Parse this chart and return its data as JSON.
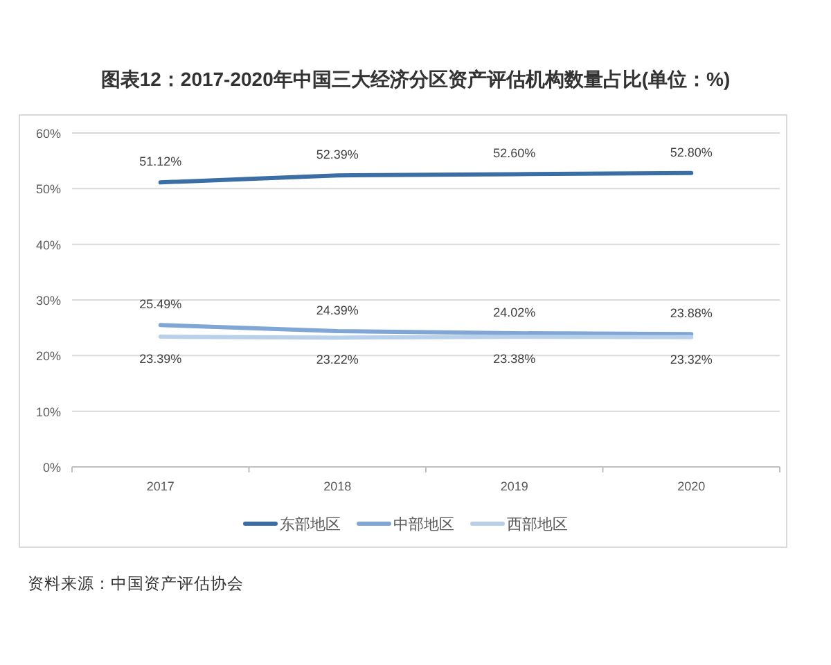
{
  "chart_data": {
    "type": "line",
    "title": "图表12：2017-2020年中国三大经济分区资产评估机构数量占比(单位：%)",
    "categories": [
      "2017",
      "2018",
      "2019",
      "2020"
    ],
    "series": [
      {
        "name": "东部地区",
        "color": "#3b6ea5",
        "values": [
          51.12,
          52.39,
          52.6,
          52.8
        ],
        "value_labels": [
          "51.12%",
          "52.39%",
          "52.60%",
          "52.80%"
        ]
      },
      {
        "name": "中部地区",
        "color": "#7fa6d4",
        "values": [
          25.49,
          24.39,
          24.02,
          23.88
        ],
        "value_labels": [
          "25.49%",
          "24.39%",
          "24.02%",
          "23.88%"
        ]
      },
      {
        "name": "西部地区",
        "color": "#b9d0ea",
        "values": [
          23.39,
          23.22,
          23.38,
          23.32
        ],
        "value_labels": [
          "23.39%",
          "23.22%",
          "23.38%",
          "23.32%"
        ]
      }
    ],
    "ylim": [
      0,
      60
    ],
    "yticks": [
      {
        "value": 0,
        "label": "0%"
      },
      {
        "value": 10,
        "label": "10%"
      },
      {
        "value": 20,
        "label": "20%"
      },
      {
        "value": 30,
        "label": "30%"
      },
      {
        "value": 40,
        "label": "40%"
      },
      {
        "value": 50,
        "label": "50%"
      },
      {
        "value": 60,
        "label": "60%"
      }
    ],
    "grid": "y",
    "legend": "bottom",
    "line_style": "solid",
    "annotations": [
      "资料来源：中国资产评估协会"
    ]
  }
}
